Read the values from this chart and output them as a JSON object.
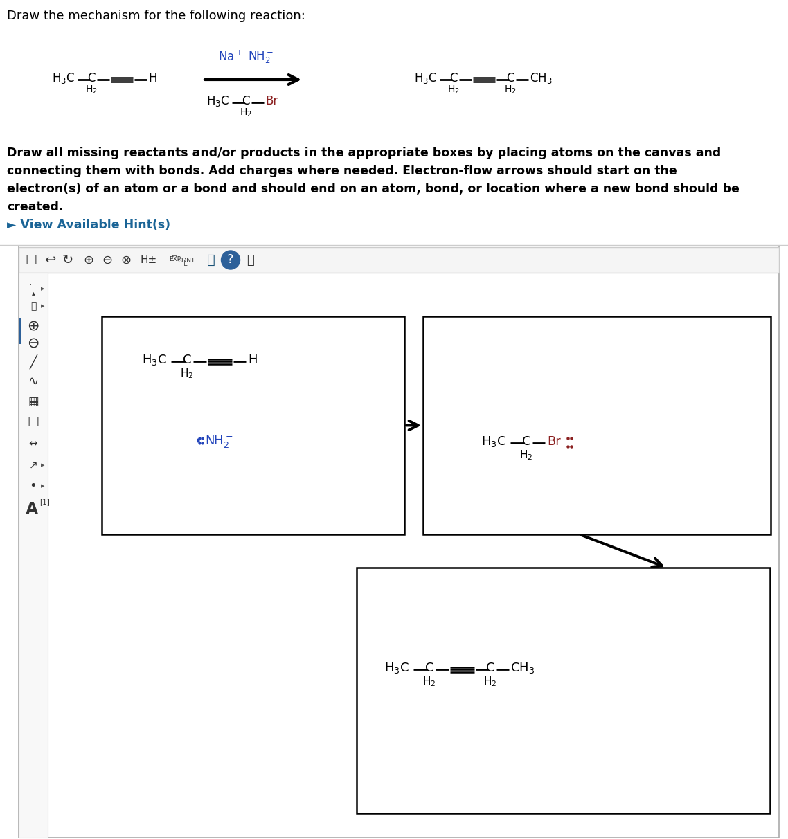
{
  "bg_color": "#ffffff",
  "title_text": "Draw the mechanism for the following reaction:",
  "instructions_line1": "Draw all missing reactants and/or products in the appropriate boxes by placing atoms on the canvas and",
  "instructions_line2": "connecting them with bonds. Add charges where needed. Electron-flow arrows should start on the",
  "instructions_line3": "electron(s) of an atom or a bond and should end on an atom, bond, or location where a new bond should be",
  "instructions_line4": "created.",
  "hint_text": "► View Available Hint(s)",
  "hint_color": "#1a6496",
  "Br_color": "#8b2020",
  "NH2_color": "#2244bb",
  "Na_color": "#2244bb"
}
